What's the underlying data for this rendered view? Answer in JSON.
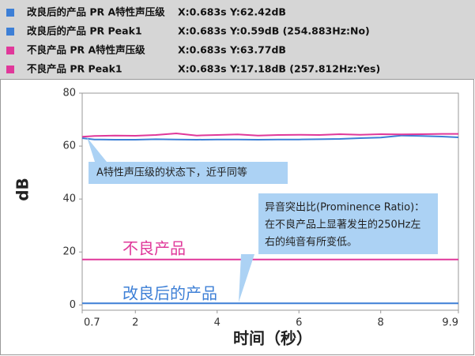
{
  "chart_data": {
    "type": "line",
    "x": [
      0.7,
      1,
      1.5,
      2,
      2.5,
      3,
      3.5,
      4,
      4.5,
      5,
      5.5,
      6,
      6.5,
      7,
      7.5,
      8,
      8.5,
      9,
      9.5,
      9.9
    ],
    "series": [
      {
        "name": "改良后的产品 PR A特性声压级",
        "readout": "X:0.683s Y:62.42dB",
        "color": "#3d7fd6",
        "values": [
          63,
          62.5,
          62.4,
          62.4,
          62.6,
          62.5,
          62.4,
          62.5,
          62.5,
          62.4,
          62.5,
          62.5,
          62.6,
          62.7,
          63,
          63.2,
          64,
          63.8,
          63.6,
          63.3
        ]
      },
      {
        "name": "改良后的产品 PR Peak1",
        "readout": "X:0.683s Y:0.59dB (254.883Hz:No)",
        "color": "#3d7fd6",
        "values": [
          0.59,
          0.59,
          0.59,
          0.59,
          0.59,
          0.59,
          0.59,
          0.59,
          0.59,
          0.59,
          0.59,
          0.59,
          0.59,
          0.59,
          0.59,
          0.59,
          0.59,
          0.59,
          0.59,
          0.59
        ]
      },
      {
        "name": "不良产品 PR A特性声压级",
        "readout": "X:0.683s Y:63.77dB",
        "color": "#e0389a",
        "values": [
          63.5,
          63.8,
          64,
          63.9,
          64.2,
          64.8,
          64,
          64.2,
          64.4,
          64,
          64.2,
          64.3,
          64.2,
          64.5,
          64.3,
          64.5,
          64.4,
          64.5,
          64.6,
          64.6
        ]
      },
      {
        "name": "不良产品 PR Peak1",
        "readout": "X:0.683s Y:17.18dB (257.812Hz:Yes)",
        "color": "#e0389a",
        "values": [
          17.18,
          17.18,
          17.18,
          17.18,
          17.18,
          17.18,
          17.18,
          17.18,
          17.18,
          17.18,
          17.18,
          17.18,
          17.18,
          17.18,
          17.18,
          17.18,
          17.18,
          17.18,
          17.18,
          17.18
        ]
      }
    ],
    "xlim": [
      0.7,
      9.9
    ],
    "xticks": [
      0.7,
      2,
      4,
      6,
      8,
      9.9
    ],
    "ylim": [
      -2,
      80
    ],
    "yticks": [
      0,
      20,
      40,
      60,
      80
    ],
    "x_label": "时间（秒）",
    "y_label": "dB",
    "annotations": {
      "callout_1": "A特性声压级的状态下，近乎同等",
      "callout_2": [
        "异音突出比(Prominence Ratio)：",
        "在不良产品上显著发生的250Hz左",
        "右的纯音有所变低。"
      ],
      "label_bad": "不良产品",
      "label_good": "改良后的产品"
    }
  }
}
